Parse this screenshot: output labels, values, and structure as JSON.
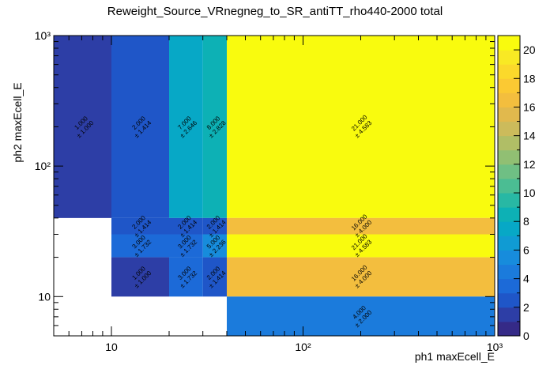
{
  "chart_data": {
    "type": "heatmap",
    "title": "Reweight_Source_VRnegneg_to_SR_antiTT_rho440-2000 total",
    "xlabel": "ph1 maxEcell_E",
    "ylabel": "ph2 maxEcell_E",
    "x_scale": "log",
    "y_scale": "log",
    "xlim": [
      5,
      1000
    ],
    "ylim": [
      5,
      1000
    ],
    "x_tick_labels": [
      {
        "value": 10,
        "label": "10"
      },
      {
        "value": 100,
        "label": "10²"
      },
      {
        "value": 1000,
        "label": "10³"
      }
    ],
    "y_tick_labels": [
      {
        "value": 10,
        "label": "10"
      },
      {
        "value": 100,
        "label": "10²"
      },
      {
        "value": 1000,
        "label": "10³"
      }
    ],
    "z_range": [
      0,
      21
    ],
    "z_ticks": [
      0,
      2,
      4,
      6,
      8,
      10,
      12,
      14,
      16,
      18,
      20
    ],
    "x_edges": [
      5,
      10,
      20,
      30,
      40,
      1000
    ],
    "y_edges": [
      5,
      10,
      20,
      30,
      40,
      1000
    ],
    "cells": [
      {
        "x": [
          5,
          10
        ],
        "y": [
          40,
          1000
        ],
        "value": 1,
        "label": "1.000",
        "error": "± 1.000"
      },
      {
        "x": [
          10,
          20
        ],
        "y": [
          40,
          1000
        ],
        "value": 2,
        "label": "2.000",
        "error": "± 1.414"
      },
      {
        "x": [
          20,
          30
        ],
        "y": [
          40,
          1000
        ],
        "value": 7,
        "label": "7.000",
        "error": "± 2.646"
      },
      {
        "x": [
          30,
          40
        ],
        "y": [
          40,
          1000
        ],
        "value": 8,
        "label": "8.000",
        "error": "± 2.828"
      },
      {
        "x": [
          40,
          1000
        ],
        "y": [
          40,
          1000
        ],
        "value": 21,
        "label": "21.000",
        "error": "± 4.583"
      },
      {
        "x": [
          10,
          20
        ],
        "y": [
          30,
          40
        ],
        "value": 2,
        "label": "2.000",
        "error": "± 1.414"
      },
      {
        "x": [
          20,
          30
        ],
        "y": [
          30,
          40
        ],
        "value": 2,
        "label": "2.000",
        "error": "± 1.414"
      },
      {
        "x": [
          30,
          40
        ],
        "y": [
          30,
          40
        ],
        "value": 2,
        "label": "2.000",
        "error": "± 1.414"
      },
      {
        "x": [
          40,
          1000
        ],
        "y": [
          30,
          40
        ],
        "value": 16,
        "label": "16.000",
        "error": "± 4.000"
      },
      {
        "x": [
          10,
          20
        ],
        "y": [
          20,
          30
        ],
        "value": 3,
        "label": "3.000",
        "error": "± 1.732"
      },
      {
        "x": [
          20,
          30
        ],
        "y": [
          20,
          30
        ],
        "value": 3,
        "label": "3.000",
        "error": "± 1.732"
      },
      {
        "x": [
          30,
          40
        ],
        "y": [
          20,
          30
        ],
        "value": 5,
        "label": "5.000",
        "error": "± 2.236"
      },
      {
        "x": [
          40,
          1000
        ],
        "y": [
          20,
          30
        ],
        "value": 21,
        "label": "21.000",
        "error": "± 4.583"
      },
      {
        "x": [
          10,
          20
        ],
        "y": [
          10,
          20
        ],
        "value": 1,
        "label": "1.000",
        "error": "± 1.000"
      },
      {
        "x": [
          20,
          30
        ],
        "y": [
          10,
          20
        ],
        "value": 3,
        "label": "3.000",
        "error": "± 1.732"
      },
      {
        "x": [
          30,
          40
        ],
        "y": [
          10,
          20
        ],
        "value": 2,
        "label": "2.000",
        "error": "± 1.414"
      },
      {
        "x": [
          40,
          1000
        ],
        "y": [
          10,
          20
        ],
        "value": 16,
        "label": "16.000",
        "error": "± 4.000"
      },
      {
        "x": [
          40,
          1000
        ],
        "y": [
          5,
          10
        ],
        "value": 4,
        "label": "4.000",
        "error": "± 2.000"
      }
    ],
    "palette": [
      "#352a87",
      "#2d3ea6",
      "#1f56c8",
      "#1c6ad8",
      "#1b7bdc",
      "#178cdc",
      "#109bd3",
      "#07a8c6",
      "#0db1b5",
      "#28b8a4",
      "#4bbd93",
      "#6fbf84",
      "#91bf73",
      "#b0be66",
      "#ccbb5b",
      "#e1b94d",
      "#f3be3e",
      "#fbc933",
      "#fbd92b",
      "#f9e924",
      "#f9fb0e"
    ]
  }
}
